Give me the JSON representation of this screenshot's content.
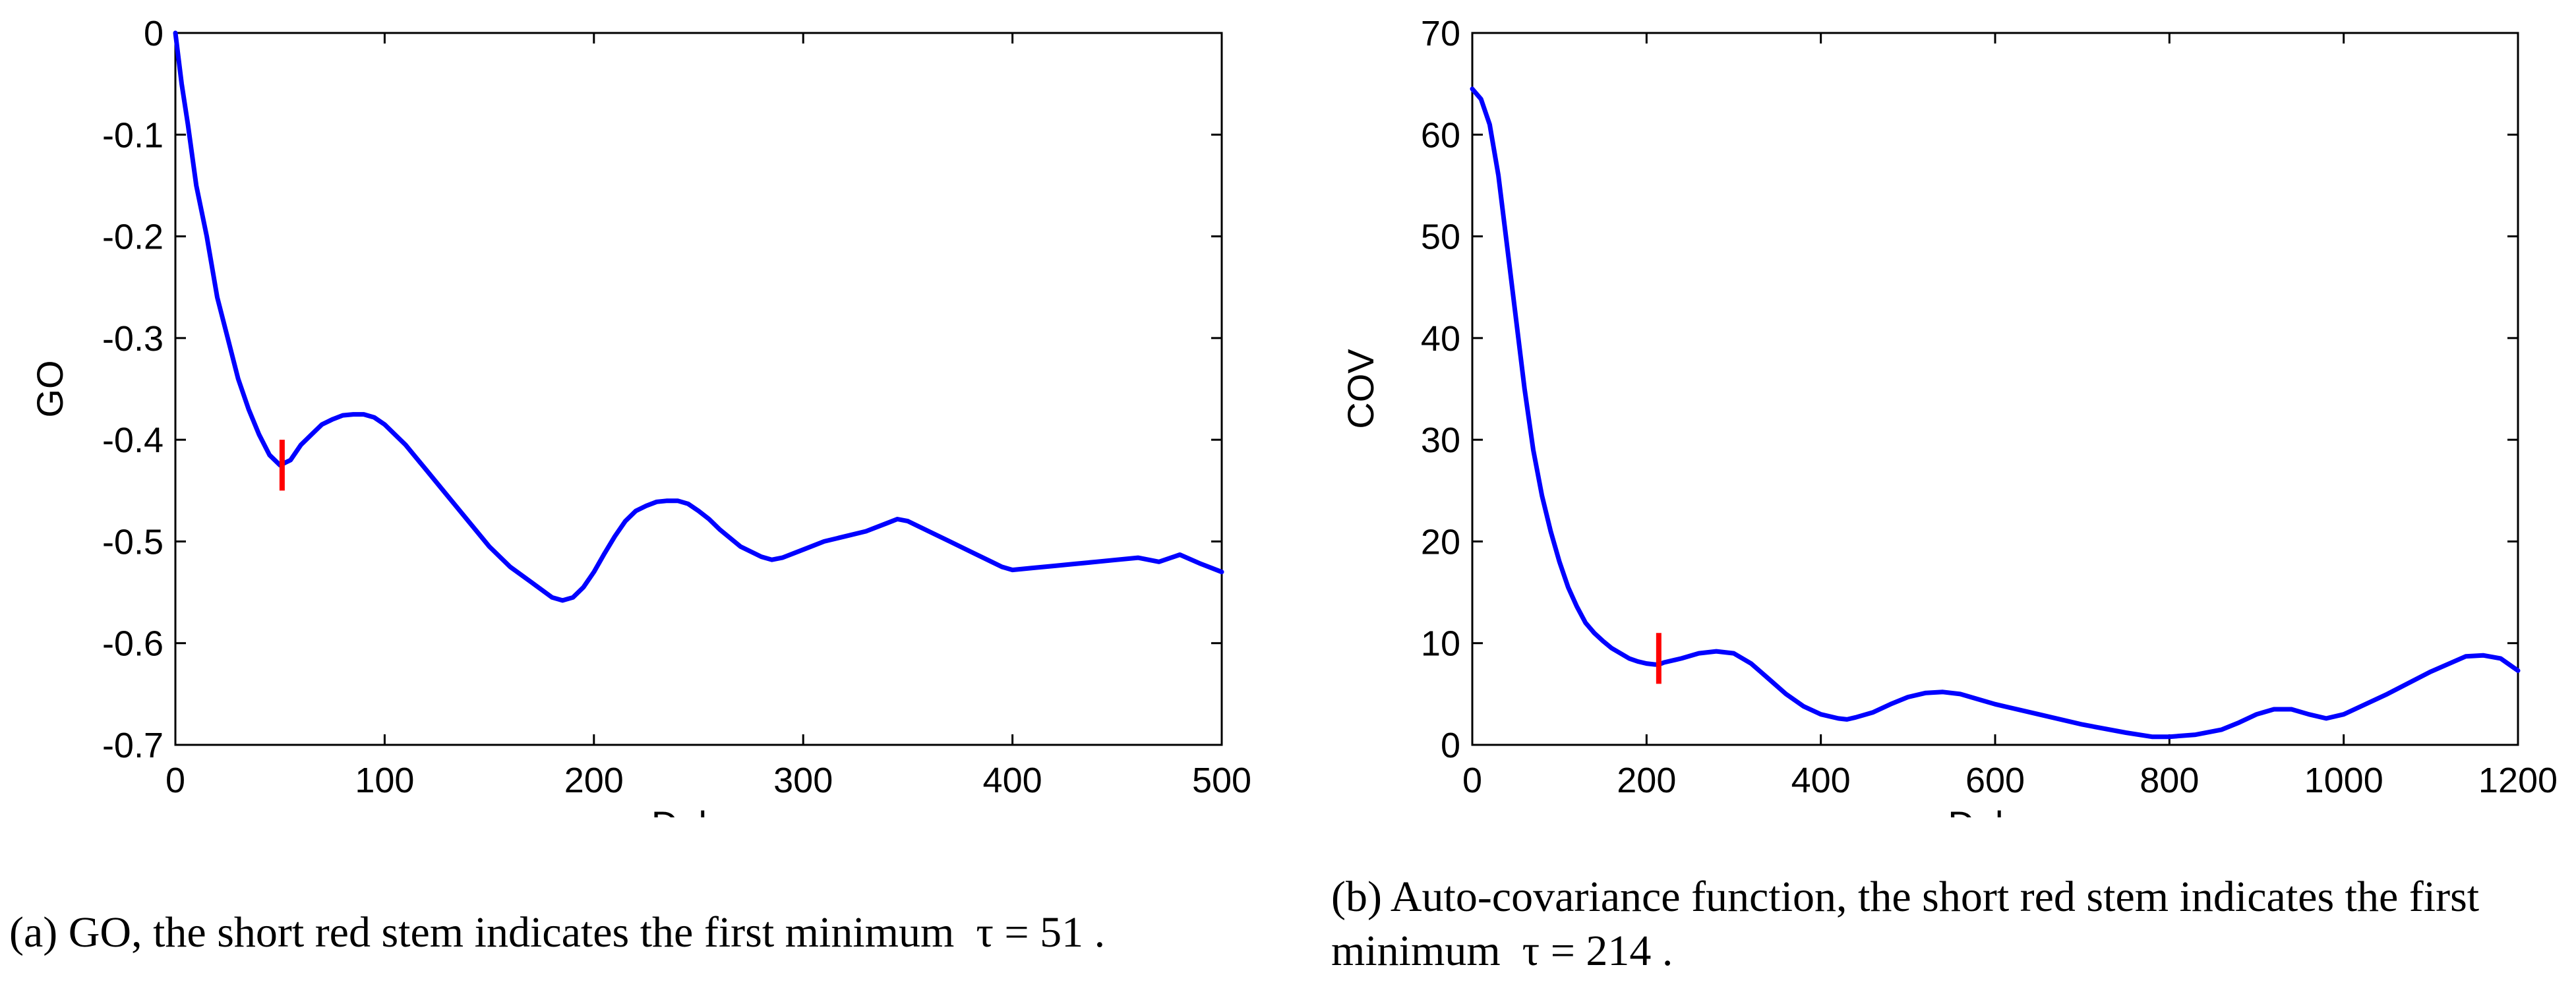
{
  "chart_data": [
    {
      "type": "line",
      "title": "",
      "xlabel": "Delay",
      "ylabel": "GO",
      "xlim": [
        0,
        500
      ],
      "ylim": [
        -0.7,
        0
      ],
      "xticks": [
        0,
        100,
        200,
        300,
        400,
        500
      ],
      "xtick_labels": [
        "0",
        "100",
        "200",
        "300",
        "400",
        "500"
      ],
      "yticks": [
        0,
        -0.1,
        -0.2,
        -0.3,
        -0.4,
        -0.5,
        -0.6,
        -0.7
      ],
      "ytick_labels": [
        "0",
        "-0.1",
        "-0.2",
        "-0.3",
        "-0.4",
        "-0.5",
        "-0.6",
        "-0.7"
      ],
      "grid": false,
      "line_color": "#0000ff",
      "series": [
        {
          "x": [
            0,
            3,
            6,
            10,
            15,
            20,
            25,
            30,
            35,
            40,
            45,
            50,
            55,
            60,
            65,
            70,
            75,
            80,
            85,
            90,
            95,
            100,
            110,
            120,
            130,
            140,
            150,
            160,
            170,
            180,
            185,
            190,
            195,
            200,
            205,
            210,
            215,
            220,
            225,
            230,
            235,
            240,
            245,
            250,
            255,
            260,
            270,
            280,
            285,
            290,
            300,
            310,
            320,
            330,
            340,
            345,
            350,
            360,
            370,
            380,
            390,
            395,
            400,
            410,
            420,
            430,
            440,
            450,
            460,
            470,
            480,
            490,
            500
          ],
          "y": [
            0,
            -0.05,
            -0.09,
            -0.15,
            -0.2,
            -0.26,
            -0.3,
            -0.34,
            -0.37,
            -0.395,
            -0.415,
            -0.425,
            -0.42,
            -0.405,
            -0.395,
            -0.385,
            -0.38,
            -0.376,
            -0.375,
            -0.375,
            -0.378,
            -0.385,
            -0.405,
            -0.43,
            -0.455,
            -0.48,
            -0.505,
            -0.525,
            -0.54,
            -0.555,
            -0.558,
            -0.555,
            -0.545,
            -0.53,
            -0.512,
            -0.495,
            -0.48,
            -0.47,
            -0.465,
            -0.461,
            -0.46,
            -0.46,
            -0.463,
            -0.47,
            -0.478,
            -0.488,
            -0.505,
            -0.515,
            -0.518,
            -0.516,
            -0.508,
            -0.5,
            -0.495,
            -0.49,
            -0.482,
            -0.478,
            -0.48,
            -0.49,
            -0.5,
            -0.51,
            -0.52,
            -0.525,
            -0.528,
            -0.526,
            -0.524,
            -0.522,
            -0.52,
            -0.518,
            -0.516,
            -0.52,
            -0.513,
            -0.522,
            -0.53
          ]
        }
      ],
      "marker": {
        "x": 51,
        "y_from": -0.4,
        "y_to": -0.45,
        "color": "#ff0000"
      }
    },
    {
      "type": "line",
      "title": "",
      "xlabel": "Delay",
      "ylabel": "COV",
      "xlim": [
        0,
        1200
      ],
      "ylim": [
        0,
        70
      ],
      "xticks": [
        0,
        200,
        400,
        600,
        800,
        1000,
        1200
      ],
      "xtick_labels": [
        "0",
        "200",
        "400",
        "600",
        "800",
        "1000",
        "1200"
      ],
      "yticks": [
        0,
        10,
        20,
        30,
        40,
        50,
        60,
        70
      ],
      "ytick_labels": [
        "0",
        "10",
        "20",
        "30",
        "40",
        "50",
        "60",
        "70"
      ],
      "grid": false,
      "line_color": "#0000ff",
      "series": [
        {
          "x": [
            0,
            10,
            20,
            30,
            40,
            50,
            60,
            70,
            80,
            90,
            100,
            110,
            120,
            130,
            140,
            150,
            160,
            170,
            180,
            190,
            200,
            210,
            214,
            220,
            240,
            260,
            280,
            300,
            320,
            340,
            360,
            380,
            400,
            420,
            430,
            440,
            460,
            480,
            500,
            520,
            540,
            560,
            580,
            600,
            650,
            700,
            750,
            780,
            800,
            830,
            860,
            880,
            900,
            920,
            940,
            960,
            980,
            1000,
            1050,
            1100,
            1140,
            1160,
            1180,
            1200
          ],
          "y": [
            64.5,
            63.5,
            61,
            56,
            49,
            42,
            35,
            29,
            24.5,
            21,
            18,
            15.5,
            13.6,
            12,
            11,
            10.2,
            9.5,
            9,
            8.5,
            8.2,
            8,
            7.9,
            7.9,
            8.1,
            8.5,
            9,
            9.2,
            9,
            8,
            6.5,
            5,
            3.8,
            3,
            2.6,
            2.5,
            2.7,
            3.2,
            4,
            4.7,
            5.1,
            5.2,
            5,
            4.5,
            4,
            3,
            2,
            1.2,
            0.8,
            0.8,
            1,
            1.5,
            2.2,
            3,
            3.5,
            3.5,
            3,
            2.6,
            3,
            5,
            7.2,
            8.7,
            8.8,
            8.5,
            7.3
          ]
        }
      ],
      "marker": {
        "x": 214,
        "y_from": 11,
        "y_to": 6,
        "color": "#ff0000"
      }
    }
  ],
  "captions": {
    "a": "(a) GO, the short red stem indicates the first minimum  τ = 51 .",
    "b": "(b) Auto-covariance function, the short red stem indicates the first minimum  τ = 214 ."
  }
}
